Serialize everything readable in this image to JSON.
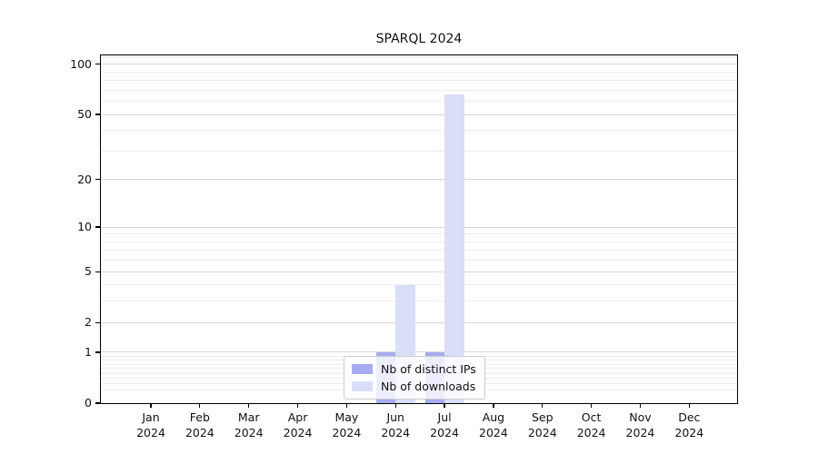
{
  "chart_data": {
    "type": "bar",
    "title": "SPARQL 2024",
    "categories": [
      "Jan",
      "Feb",
      "Mar",
      "Apr",
      "May",
      "Jun",
      "Jul",
      "Aug",
      "Sep",
      "Oct",
      "Nov",
      "Dec"
    ],
    "category_year": "2024",
    "series": [
      {
        "name": "Nb of distinct IPs",
        "color": "#a6acf0",
        "values": [
          0,
          0,
          0,
          0,
          0,
          1,
          1,
          0,
          0,
          0,
          0,
          0
        ]
      },
      {
        "name": "Nb of downloads",
        "color": "#dadef9",
        "values": [
          0,
          0,
          0,
          0,
          0,
          4,
          66,
          0,
          0,
          0,
          0,
          0
        ]
      }
    ],
    "xlabel": "",
    "ylabel": "",
    "y_scale": "log1p",
    "y_ticks": [
      0,
      1,
      2,
      5,
      10,
      20,
      50,
      100
    ],
    "y_minor_ticks": [
      0.2,
      0.3,
      0.4,
      0.5,
      0.6,
      0.7,
      0.8,
      0.9,
      3,
      4,
      6,
      7,
      8,
      9,
      30,
      40,
      60,
      70,
      80,
      90,
      110
    ],
    "ylim": [
      0,
      113
    ],
    "grid": "both",
    "legend_position": "lower-center-inside"
  }
}
